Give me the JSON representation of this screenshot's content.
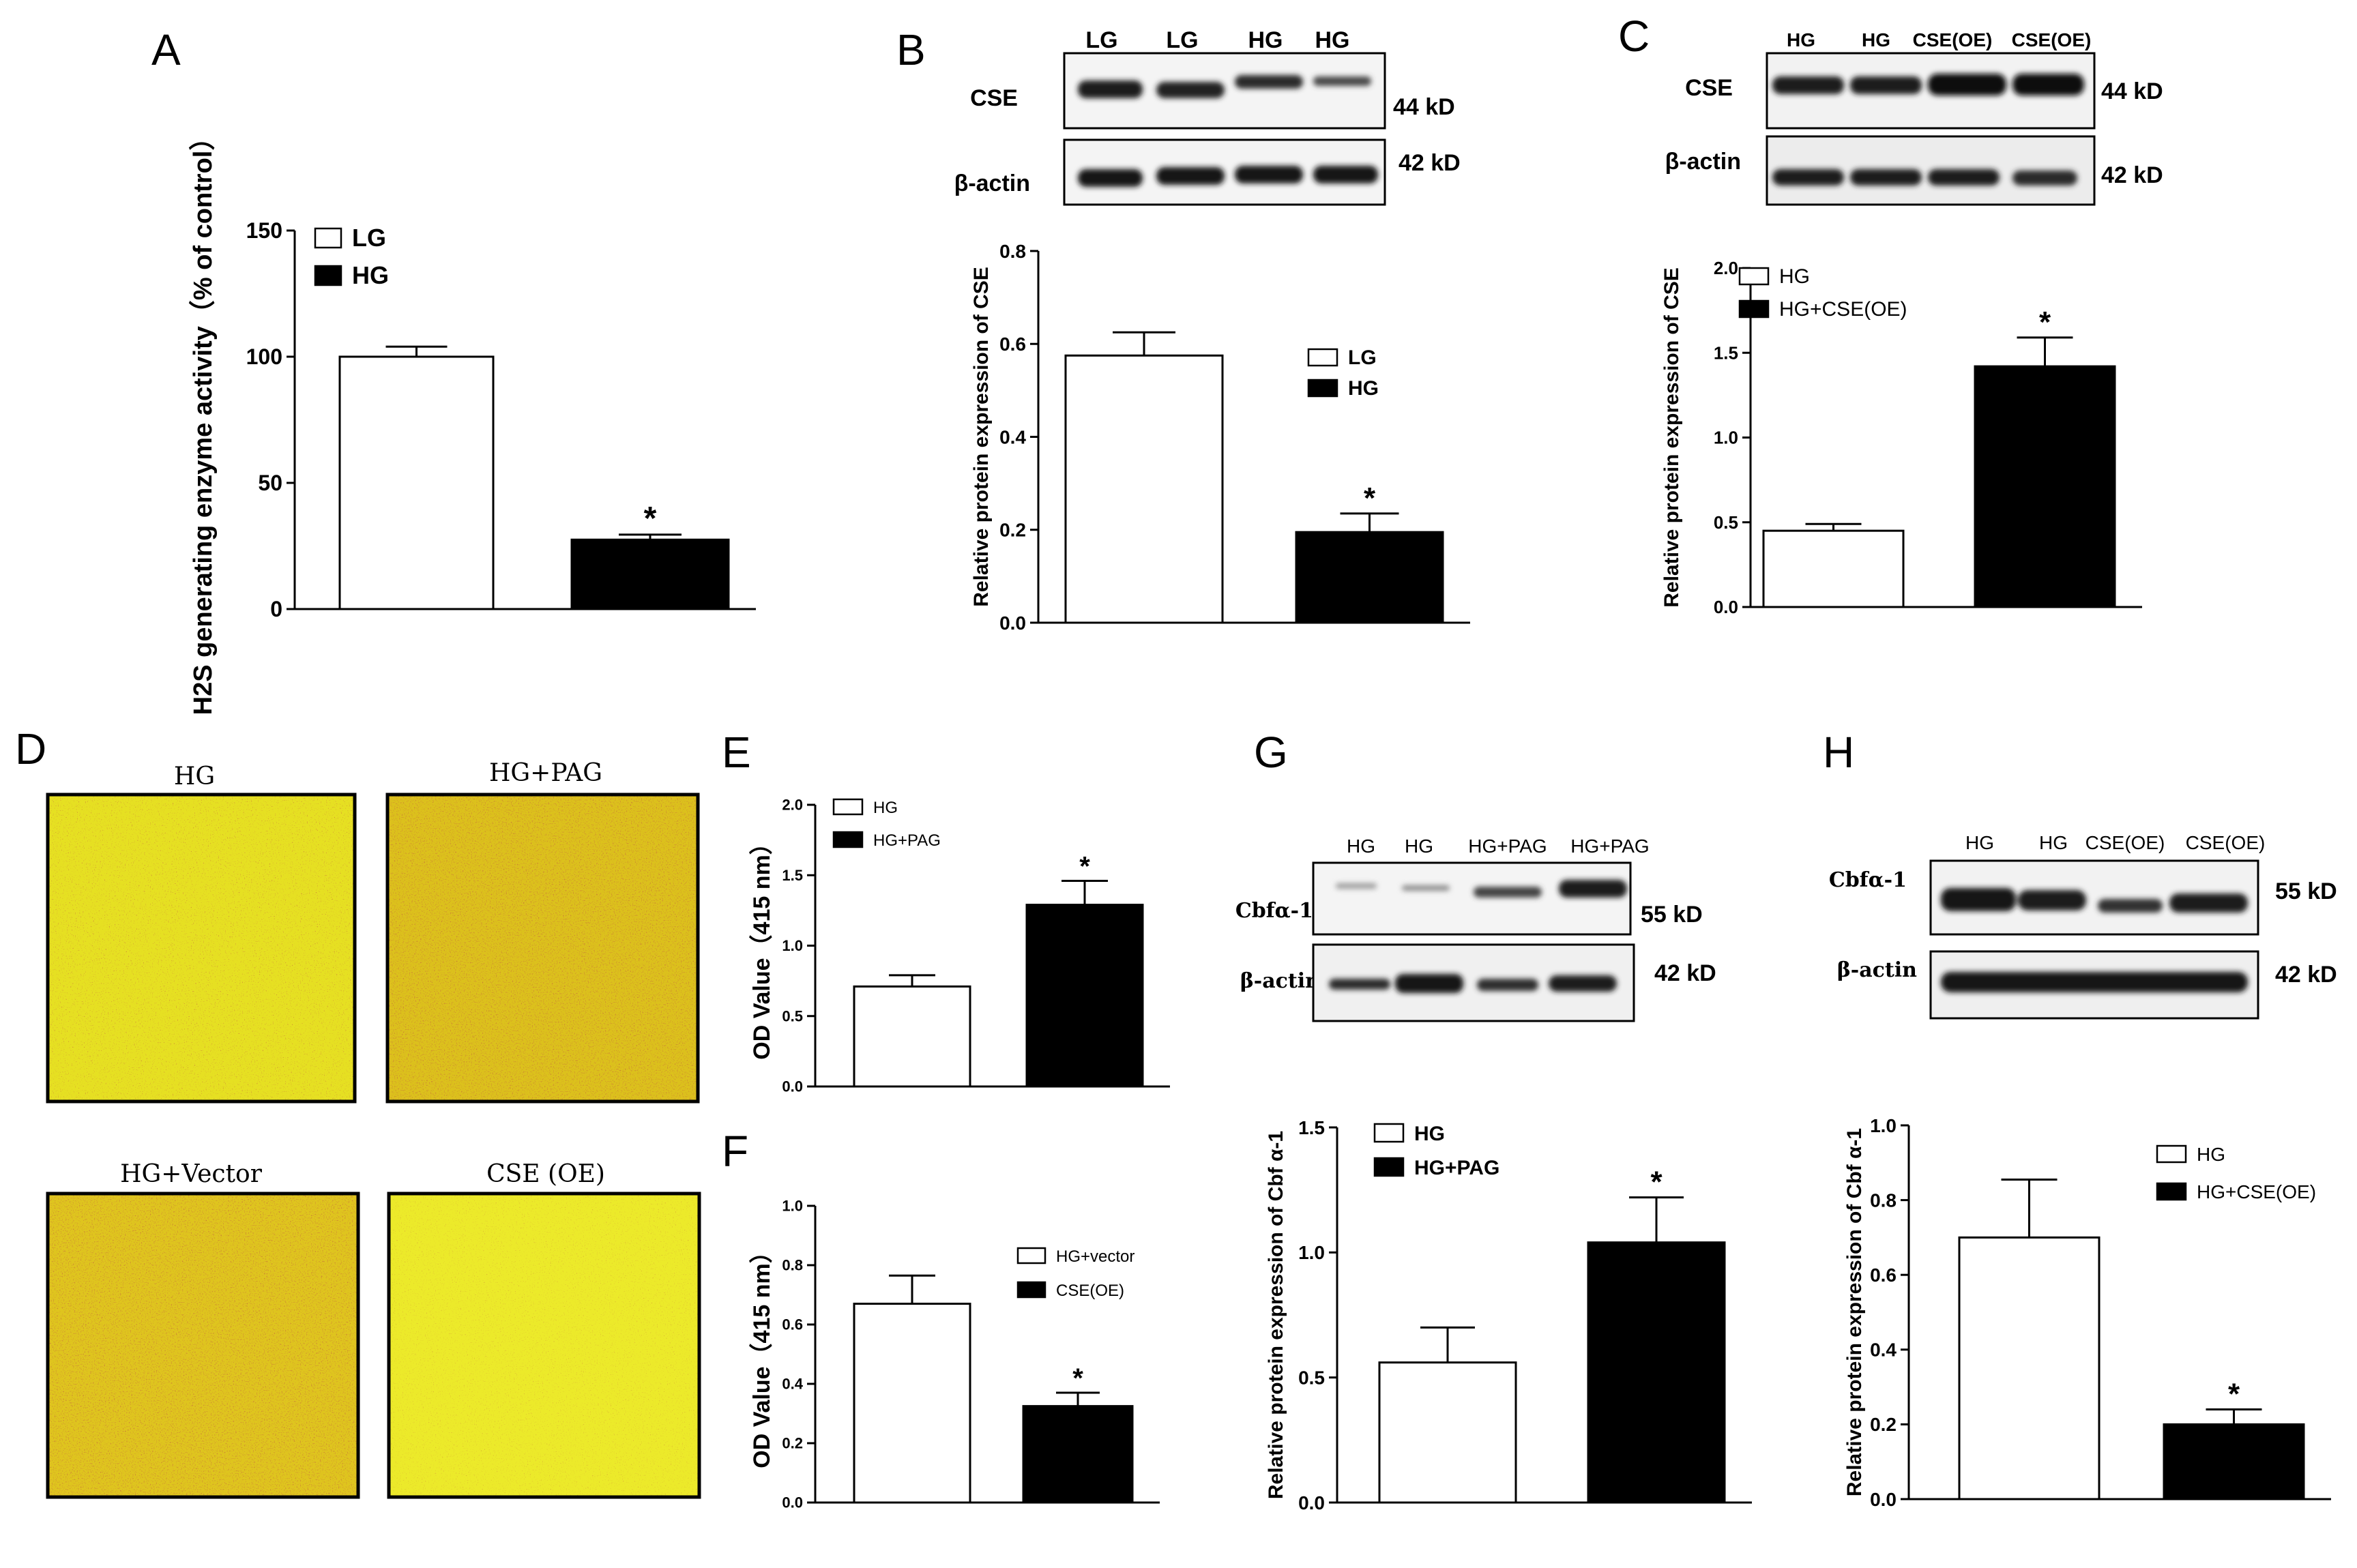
{
  "panel_letters": [
    "A",
    "B",
    "C",
    "D",
    "E",
    "F",
    "G",
    "H"
  ],
  "colors": {
    "bar_control": "#ffffff",
    "bar_treated": "#000000",
    "stain_bg": "#e6e022",
    "stain_dark": "#8a1f0f"
  },
  "blots": {
    "B": {
      "lanes": [
        "LG",
        "LG",
        "HG",
        "HG"
      ],
      "rows": [
        "CSE",
        "β-actin"
      ],
      "sizes": [
        "44 kD",
        "42 kD"
      ]
    },
    "C": {
      "lanes": [
        "HG",
        "HG",
        "CSE(OE)",
        "CSE(OE)"
      ],
      "rows": [
        "CSE",
        "β-actin"
      ],
      "sizes": [
        "44 kD",
        "42 kD"
      ]
    },
    "G": {
      "lanes": [
        "HG",
        "HG",
        "HG+PAG",
        "HG+PAG"
      ],
      "rows": [
        "Cbfα-1",
        "β-actin"
      ],
      "sizes": [
        "55 kD",
        "42 kD"
      ]
    },
    "H": {
      "lanes": [
        "HG",
        "HG",
        "CSE(OE)",
        "CSE(OE)"
      ],
      "rows": [
        "Cbfα-1",
        "β-actin"
      ],
      "sizes": [
        "55 kD",
        "42 kD"
      ]
    }
  },
  "stain_panel": {
    "labels": [
      "HG",
      "HG+PAG",
      "HG+Vector",
      "CSE (OE)"
    ]
  },
  "chart_data": [
    {
      "panel": "A",
      "type": "bar",
      "categories": [
        "LG",
        "HG"
      ],
      "values": [
        100,
        27.5
      ],
      "errors": [
        4,
        2
      ],
      "significance": [
        "",
        "*"
      ],
      "ylabel": "H2S generating enzyme activity（% of control）",
      "ylim": [
        0,
        150
      ],
      "yticks": [
        "0",
        "50",
        "100",
        "150"
      ],
      "legend": [
        "LG",
        "HG"
      ],
      "legend_position": "top-left"
    },
    {
      "panel": "B",
      "type": "bar",
      "categories": [
        "LG",
        "HG"
      ],
      "values": [
        0.575,
        0.195
      ],
      "errors": [
        0.05,
        0.04
      ],
      "significance": [
        "",
        "*"
      ],
      "ylabel": "Relative protein expression of CSE",
      "ylim": [
        0,
        0.8
      ],
      "yticks": [
        "0.0",
        "0.2",
        "0.4",
        "0.6",
        "0.8"
      ],
      "legend": [
        "LG",
        "HG"
      ],
      "legend_position": "top-right"
    },
    {
      "panel": "C",
      "type": "bar",
      "categories": [
        "HG",
        "HG+CSE(OE)"
      ],
      "values": [
        0.45,
        1.42
      ],
      "errors": [
        0.04,
        0.17
      ],
      "significance": [
        "",
        "*"
      ],
      "ylabel": "Relative protein expression of CSE",
      "ylim": [
        0,
        2.0
      ],
      "yticks": [
        "0.0",
        "0.5",
        "1.0",
        "1.5",
        "2.0"
      ],
      "legend": [
        "HG",
        "HG+CSE(OE)"
      ],
      "legend_position": "top-left"
    },
    {
      "panel": "E",
      "type": "bar",
      "categories": [
        "HG",
        "HG+PAG"
      ],
      "values": [
        0.71,
        1.29
      ],
      "errors": [
        0.08,
        0.17
      ],
      "significance": [
        "",
        "*"
      ],
      "ylabel": "OD Value（415 nm）",
      "ylim": [
        0,
        2.0
      ],
      "yticks": [
        "0.0",
        "0.5",
        "1.0",
        "1.5",
        "2.0"
      ],
      "legend": [
        "HG",
        "HG+PAG"
      ],
      "legend_position": "top-left"
    },
    {
      "panel": "F",
      "type": "bar",
      "categories": [
        "HG+vector",
        "CSE(OE)"
      ],
      "values": [
        0.67,
        0.325
      ],
      "errors": [
        0.095,
        0.045
      ],
      "significance": [
        "",
        "*"
      ],
      "ylabel": "OD Value（415 nm）",
      "ylim": [
        0,
        1.0
      ],
      "yticks": [
        "0.0",
        "0.2",
        "0.4",
        "0.6",
        "0.8",
        "1.0"
      ],
      "legend": [
        "HG+vector",
        "CSE(OE)"
      ],
      "legend_position": "top-right"
    },
    {
      "panel": "G",
      "type": "bar",
      "categories": [
        "HG",
        "HG+PAG"
      ],
      "values": [
        0.56,
        1.04
      ],
      "errors": [
        0.14,
        0.18
      ],
      "significance": [
        "",
        "*"
      ],
      "ylabel": "Relative protein expression of Cbf α-1",
      "ylim": [
        0,
        1.5
      ],
      "yticks": [
        "0.0",
        "0.5",
        "1.0",
        "1.5"
      ],
      "legend": [
        "HG",
        "HG+PAG"
      ],
      "legend_position": "top-left"
    },
    {
      "panel": "H",
      "type": "bar",
      "categories": [
        "HG",
        "HG+CSE(OE)"
      ],
      "values": [
        0.7,
        0.2
      ],
      "errors": [
        0.155,
        0.04
      ],
      "significance": [
        "",
        "*"
      ],
      "ylabel": "Relative protein expression of Cbf α-1",
      "ylim": [
        0,
        1.0
      ],
      "yticks": [
        "0.0",
        "0.2",
        "0.4",
        "0.6",
        "0.8",
        "1.0"
      ],
      "legend": [
        "HG",
        "HG+CSE(OE)"
      ],
      "legend_position": "top-right"
    }
  ]
}
